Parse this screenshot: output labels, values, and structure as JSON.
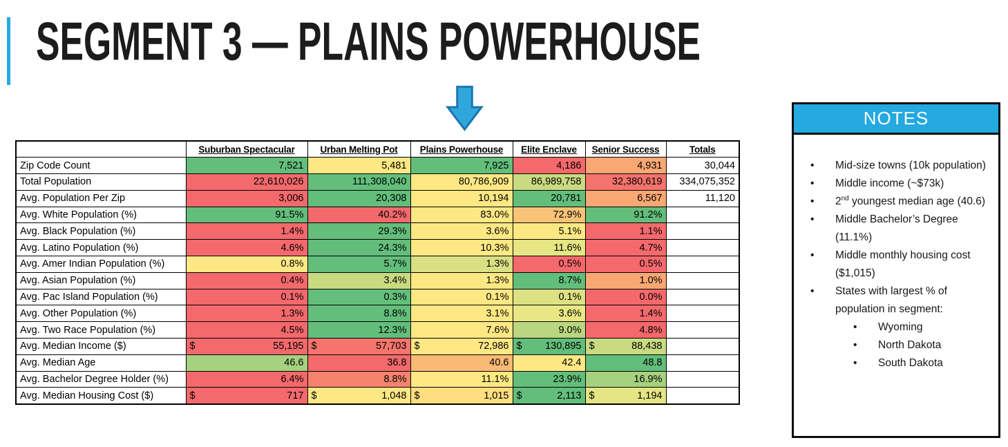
{
  "slide": {
    "title": "SEGMENT 3 — PLAINS POWERHOUSE"
  },
  "colors": {
    "accent_blue": "#24A9E1",
    "arrow_fill": "#2FA7DC",
    "arrow_stroke": "#1B74B0",
    "heat_green": "#63BE7B",
    "heat_yellow": "#FEE884",
    "heat_red": "#F4696C"
  },
  "table": {
    "columns": [
      "Suburban Spectacular",
      "Urban Melting Pot",
      "Plains Powerhouse",
      "Elite Enclave",
      "Senior Success",
      "Totals"
    ],
    "rows": [
      {
        "label": "Zip Code Count",
        "cells": [
          {
            "v": "7,521",
            "bg": "#63BE7B"
          },
          {
            "v": "5,481",
            "bg": "#FEE884"
          },
          {
            "v": "7,925",
            "bg": "#63BE7B"
          },
          {
            "v": "4,186",
            "bg": "#F4696C"
          },
          {
            "v": "4,931",
            "bg": "#F9A873"
          }
        ],
        "total": "30,044"
      },
      {
        "label": "Total Population",
        "cells": [
          {
            "v": "22,610,026",
            "bg": "#F4696C"
          },
          {
            "v": "111,308,040",
            "bg": "#63BE7B"
          },
          {
            "v": "80,786,909",
            "bg": "#FEE884"
          },
          {
            "v": "86,989,758",
            "bg": "#C9DB81"
          },
          {
            "v": "32,380,619",
            "bg": "#F4736C"
          }
        ],
        "total": "334,075,352"
      },
      {
        "label": "Avg. Population Per Zip",
        "cells": [
          {
            "v": "3,006",
            "bg": "#F4696C"
          },
          {
            "v": "20,308",
            "bg": "#63BE7B"
          },
          {
            "v": "10,194",
            "bg": "#FEE884"
          },
          {
            "v": "20,781",
            "bg": "#63BE7B"
          },
          {
            "v": "6,567",
            "bg": "#F9A873"
          }
        ],
        "total": "11,120"
      },
      {
        "label": "Avg. White Population (%)",
        "cells": [
          {
            "v": "91.5%",
            "bg": "#63BE7B"
          },
          {
            "v": "40.2%",
            "bg": "#F4696C"
          },
          {
            "v": "83.0%",
            "bg": "#FEE884"
          },
          {
            "v": "72.9%",
            "bg": "#F8C376"
          },
          {
            "v": "91.2%",
            "bg": "#63BE7B"
          }
        ],
        "total": ""
      },
      {
        "label": "Avg. Black Population (%)",
        "cells": [
          {
            "v": "1.4%",
            "bg": "#F4696C"
          },
          {
            "v": "29.3%",
            "bg": "#63BE7B"
          },
          {
            "v": "3.6%",
            "bg": "#FEE884"
          },
          {
            "v": "5.1%",
            "bg": "#FCE883"
          },
          {
            "v": "1.1%",
            "bg": "#F4696C"
          }
        ],
        "total": ""
      },
      {
        "label": "Avg. Latino Population (%)",
        "cells": [
          {
            "v": "4.6%",
            "bg": "#F4696C"
          },
          {
            "v": "24.3%",
            "bg": "#63BE7B"
          },
          {
            "v": "10.3%",
            "bg": "#FEE884"
          },
          {
            "v": "11.6%",
            "bg": "#E6E684"
          },
          {
            "v": "4.7%",
            "bg": "#F4696C"
          }
        ],
        "total": ""
      },
      {
        "label": "Avg. Amer Indian Population (%)",
        "cells": [
          {
            "v": "0.8%",
            "bg": "#FEE884"
          },
          {
            "v": "5.7%",
            "bg": "#63BE7B"
          },
          {
            "v": "1.3%",
            "bg": "#D9E083"
          },
          {
            "v": "0.5%",
            "bg": "#F4696C"
          },
          {
            "v": "0.5%",
            "bg": "#F4696C"
          }
        ],
        "total": ""
      },
      {
        "label": "Avg. Asian Population (%)",
        "cells": [
          {
            "v": "0.4%",
            "bg": "#F4696C"
          },
          {
            "v": "3.4%",
            "bg": "#C9DB81"
          },
          {
            "v": "1.3%",
            "bg": "#FEE884"
          },
          {
            "v": "8.7%",
            "bg": "#63BE7B"
          },
          {
            "v": "1.0%",
            "bg": "#F9A873"
          }
        ],
        "total": ""
      },
      {
        "label": "Avg. Pac Island Population (%)",
        "cells": [
          {
            "v": "0.1%",
            "bg": "#F4696C"
          },
          {
            "v": "0.3%",
            "bg": "#63BE7B"
          },
          {
            "v": "0.1%",
            "bg": "#FEE884"
          },
          {
            "v": "0.1%",
            "bg": "#DCE283"
          },
          {
            "v": "0.0%",
            "bg": "#F4696C"
          }
        ],
        "total": ""
      },
      {
        "label": "Avg. Other Population (%)",
        "cells": [
          {
            "v": "1.3%",
            "bg": "#F4696C"
          },
          {
            "v": "8.8%",
            "bg": "#63BE7B"
          },
          {
            "v": "3.1%",
            "bg": "#FEE884"
          },
          {
            "v": "3.6%",
            "bg": "#E8E784"
          },
          {
            "v": "1.4%",
            "bg": "#F4696C"
          }
        ],
        "total": ""
      },
      {
        "label": "Avg. Two Race Population (%)",
        "cells": [
          {
            "v": "4.5%",
            "bg": "#F4696C"
          },
          {
            "v": "12.3%",
            "bg": "#63BE7B"
          },
          {
            "v": "7.6%",
            "bg": "#FEE884"
          },
          {
            "v": "9.0%",
            "bg": "#BAD680"
          },
          {
            "v": "4.8%",
            "bg": "#F4696C"
          }
        ],
        "total": ""
      },
      {
        "label": "Avg. Median Income ($)",
        "cells": [
          {
            "v": "55,195",
            "pre": "$",
            "bg": "#F4696C"
          },
          {
            "v": "57,703",
            "pre": "$",
            "bg": "#F5756C"
          },
          {
            "v": "72,986",
            "pre": "$",
            "bg": "#FEE884"
          },
          {
            "v": "130,895",
            "pre": "$",
            "bg": "#63BE7B"
          },
          {
            "v": "88,438",
            "pre": "$",
            "bg": "#C9DB81"
          }
        ],
        "total": ""
      },
      {
        "label": "Avg. Median Age",
        "cells": [
          {
            "v": "46.6",
            "bg": "#A6D17E"
          },
          {
            "v": "36.8",
            "bg": "#F4696C"
          },
          {
            "v": "40.6",
            "bg": "#F9BA75"
          },
          {
            "v": "42.4",
            "bg": "#FEE884"
          },
          {
            "v": "48.8",
            "bg": "#63BE7B"
          }
        ],
        "total": ""
      },
      {
        "label": "Avg. Bachelor Degree Holder (%)",
        "cells": [
          {
            "v": "6.4%",
            "bg": "#F4696C"
          },
          {
            "v": "8.8%",
            "bg": "#F6836E"
          },
          {
            "v": "11.1%",
            "bg": "#FEE884"
          },
          {
            "v": "23.9%",
            "bg": "#63BE7B"
          },
          {
            "v": "16.9%",
            "bg": "#A6D17E"
          }
        ],
        "total": ""
      },
      {
        "label": "Avg. Median Housing Cost ($)",
        "cells": [
          {
            "v": "717",
            "pre": "$",
            "bg": "#F4696C"
          },
          {
            "v": "1,048",
            "pre": "$",
            "bg": "#FEE884"
          },
          {
            "v": "1,015",
            "pre": "$",
            "bg": "#FEDE81"
          },
          {
            "v": "2,113",
            "pre": "$",
            "bg": "#63BE7B"
          },
          {
            "v": "1,194",
            "pre": "$",
            "bg": "#E4E584"
          }
        ],
        "total": ""
      }
    ]
  },
  "notes": {
    "title": "NOTES",
    "items": [
      {
        "text": "Mid-size towns (10k population)"
      },
      {
        "text": "Middle income (~$73k)"
      },
      {
        "pre": "2",
        "sup": "nd",
        "text": " youngest median age (40.6)"
      },
      {
        "text": "Middle Bachelor’s Degree (11.1%)"
      },
      {
        "text": "Middle monthly housing cost ($1,015)"
      },
      {
        "text": "States with largest % of population in segment:",
        "children": [
          "Wyoming",
          "North Dakota",
          "South Dakota"
        ]
      }
    ]
  }
}
